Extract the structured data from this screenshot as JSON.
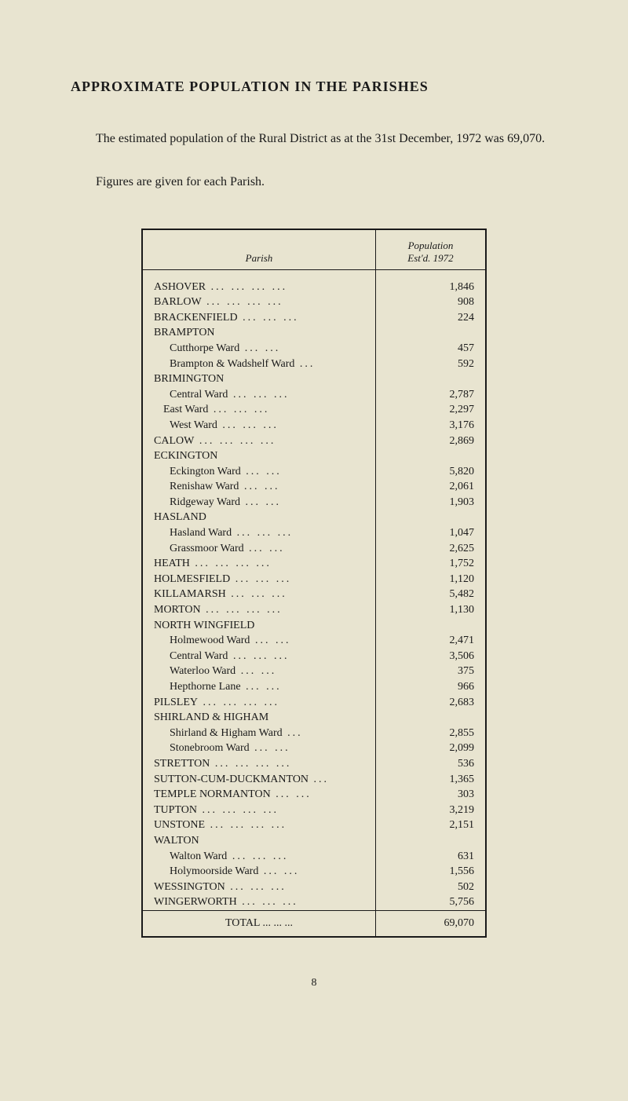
{
  "title": "APPROXIMATE POPULATION IN THE PARISHES",
  "intro": "The estimated population of the Rural District as at the 31st December, 1972 was 69,070.",
  "subtext": "Figures are given for each Parish.",
  "header": {
    "col1": "Parish",
    "col2_line1": "Population",
    "col2_line2": "Est'd. 1972"
  },
  "rows": [
    {
      "label": "ASHOVER",
      "dots": "...   ...   ...   ...",
      "value": "1,846",
      "indent": 0
    },
    {
      "label": "BARLOW",
      "dots": "...   ...   ...   ...",
      "value": "908",
      "indent": 0
    },
    {
      "label": "BRACKENFIELD",
      "dots": "...   ...   ...",
      "value": "224",
      "indent": 0
    },
    {
      "label": "BRAMPTON",
      "dots": "",
      "value": "",
      "indent": 0
    },
    {
      "label": "Cutthorpe Ward",
      "dots": "...   ...",
      "value": "457",
      "indent": 1
    },
    {
      "label": "Brampton & Wadshelf Ward",
      "dots": "...",
      "value": "592",
      "indent": 1
    },
    {
      "label": "BRIMINGTON",
      "dots": "",
      "value": "",
      "indent": 0
    },
    {
      "label": "Central Ward",
      "dots": "...   ...   ...",
      "value": "2,787",
      "indent": 1
    },
    {
      "label": "East Ward",
      "dots": "...   ...   ...",
      "value": "2,297",
      "indent": 2
    },
    {
      "label": "West Ward",
      "dots": "...   ...   ...",
      "value": "3,176",
      "indent": 1
    },
    {
      "label": "CALOW",
      "dots": "...   ...   ...   ...",
      "value": "2,869",
      "indent": 0
    },
    {
      "label": "ECKINGTON",
      "dots": "",
      "value": "",
      "indent": 0
    },
    {
      "label": "Eckington Ward",
      "dots": "...   ...",
      "value": "5,820",
      "indent": 1
    },
    {
      "label": "Renishaw Ward",
      "dots": "...   ...",
      "value": "2,061",
      "indent": 1
    },
    {
      "label": "Ridgeway Ward",
      "dots": "...   ...",
      "value": "1,903",
      "indent": 1
    },
    {
      "label": "HASLAND",
      "dots": "",
      "value": "",
      "indent": 0
    },
    {
      "label": "Hasland Ward",
      "dots": "...   ...   ...",
      "value": "1,047",
      "indent": 1
    },
    {
      "label": "Grassmoor Ward",
      "dots": "...   ...",
      "value": "2,625",
      "indent": 1
    },
    {
      "label": "HEATH",
      "dots": "...   ...   ...   ...",
      "value": "1,752",
      "indent": 0
    },
    {
      "label": "HOLMESFIELD",
      "dots": "...   ...   ...",
      "value": "1,120",
      "indent": 0
    },
    {
      "label": "KILLAMARSH",
      "dots": "...   ...   ...",
      "value": "5,482",
      "indent": 0
    },
    {
      "label": "MORTON",
      "dots": "...   ...   ...   ...",
      "value": "1,130",
      "indent": 0
    },
    {
      "label": "NORTH WINGFIELD",
      "dots": "",
      "value": "",
      "indent": 0
    },
    {
      "label": "Holmewood Ward",
      "dots": "...   ...",
      "value": "2,471",
      "indent": 1
    },
    {
      "label": "Central Ward",
      "dots": "...   ...   ...",
      "value": "3,506",
      "indent": 1
    },
    {
      "label": "Waterloo Ward",
      "dots": "...   ...",
      "value": "375",
      "indent": 1
    },
    {
      "label": "Hepthorne Lane",
      "dots": "...   ...",
      "value": "966",
      "indent": 1
    },
    {
      "label": "PILSLEY",
      "dots": "...   ...   ...   ...",
      "value": "2,683",
      "indent": 0
    },
    {
      "label": "SHIRLAND & HIGHAM",
      "dots": "",
      "value": "",
      "indent": 0
    },
    {
      "label": "Shirland & Higham Ward",
      "dots": "...",
      "value": "2,855",
      "indent": 1
    },
    {
      "label": "Stonebroom Ward",
      "dots": "...   ...",
      "value": "2,099",
      "indent": 1
    },
    {
      "label": "STRETTON",
      "dots": "...   ...   ...   ...",
      "value": "536",
      "indent": 0
    },
    {
      "label": "SUTTON-CUM-DUCKMANTON",
      "dots": "...",
      "value": "1,365",
      "indent": 0
    },
    {
      "label": "TEMPLE NORMANTON",
      "dots": "...   ...",
      "value": "303",
      "indent": 0
    },
    {
      "label": "TUPTON",
      "dots": "...   ...   ...   ...",
      "value": "3,219",
      "indent": 0
    },
    {
      "label": "UNSTONE",
      "dots": "...   ...   ...   ...",
      "value": "2,151",
      "indent": 0
    },
    {
      "label": "WALTON",
      "dots": "",
      "value": "",
      "indent": 0
    },
    {
      "label": "Walton Ward",
      "dots": "...   ...   ...",
      "value": "631",
      "indent": 1
    },
    {
      "label": "Holymoorside Ward",
      "dots": "...   ...",
      "value": "1,556",
      "indent": 1
    },
    {
      "label": "WESSINGTON",
      "dots": "...   ...   ...",
      "value": "502",
      "indent": 0
    },
    {
      "label": "WINGERWORTH",
      "dots": "...   ...   ...",
      "value": "5,756",
      "indent": 0
    }
  ],
  "total": {
    "label": "TOTAL ...   ...   ...",
    "value": "69,070"
  },
  "page_number": "8",
  "colors": {
    "background": "#e8e4d0",
    "text": "#1a1a1a",
    "border": "#1a1a1a"
  },
  "typography": {
    "title_fontsize": 18,
    "body_fontsize": 16,
    "table_fontsize": 14,
    "header_fontsize": 13
  }
}
